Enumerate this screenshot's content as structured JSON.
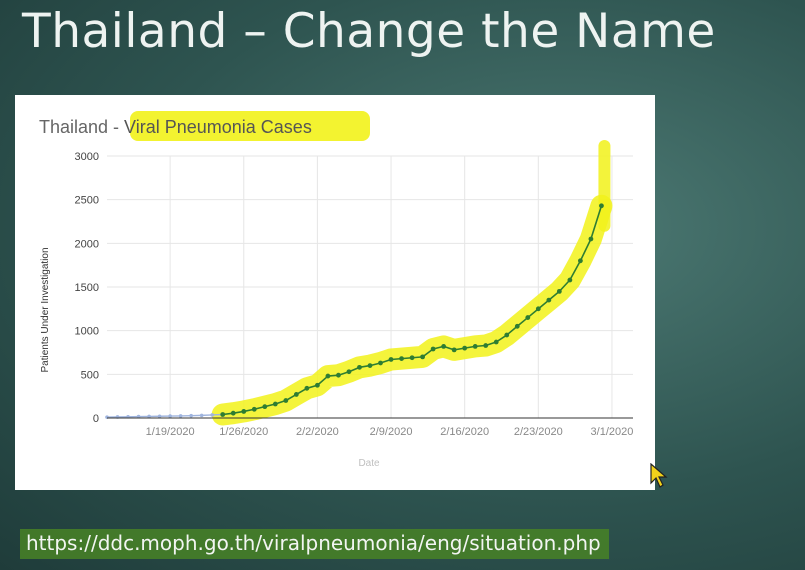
{
  "slide": {
    "title": "Thailand – Change the Name",
    "source_url": "https://ddc.moph.go.th/viralpneumonia/eng/situation.php"
  },
  "highlight_color": "#f2f21a",
  "chart_data": {
    "type": "line",
    "title_prefix": "Thailand - ",
    "title_highlight": "Viral Pneumonia Cases",
    "xlabel": "Date",
    "ylabel": "Patients Under Investigation",
    "ylim": [
      0,
      3000
    ],
    "yticks": [
      0,
      500,
      1000,
      1500,
      2000,
      2500,
      3000
    ],
    "xlim": [
      "2020-01-13",
      "2020-03-03"
    ],
    "xticks": [
      "1/19/2020",
      "1/26/2020",
      "2/2/2020",
      "2/9/2020",
      "2/16/2020",
      "2/23/2020",
      "3/1/2020"
    ],
    "grid": true,
    "legend": "none",
    "series": [
      {
        "color": "#9fb4de",
        "points": [
          [
            "2020-01-13",
            10
          ],
          [
            "2020-01-14",
            12
          ],
          [
            "2020-01-15",
            14
          ],
          [
            "2020-01-16",
            16
          ],
          [
            "2020-01-17",
            18
          ],
          [
            "2020-01-18",
            20
          ],
          [
            "2020-01-19",
            22
          ],
          [
            "2020-01-20",
            24
          ],
          [
            "2020-01-21",
            27
          ],
          [
            "2020-01-22",
            30
          ],
          [
            "2020-01-23",
            35
          ],
          [
            "2020-01-24",
            40
          ]
        ]
      },
      {
        "color": "#2e7d32",
        "points": [
          [
            "2020-01-24",
            40
          ],
          [
            "2020-01-25",
            55
          ],
          [
            "2020-01-26",
            75
          ],
          [
            "2020-01-27",
            100
          ],
          [
            "2020-01-28",
            130
          ],
          [
            "2020-01-29",
            160
          ],
          [
            "2020-01-30",
            200
          ],
          [
            "2020-01-31",
            270
          ],
          [
            "2020-02-01",
            340
          ],
          [
            "2020-02-02",
            375
          ],
          [
            "2020-02-03",
            480
          ],
          [
            "2020-02-04",
            490
          ],
          [
            "2020-02-05",
            530
          ],
          [
            "2020-02-06",
            580
          ],
          [
            "2020-02-07",
            600
          ],
          [
            "2020-02-08",
            630
          ],
          [
            "2020-02-09",
            670
          ],
          [
            "2020-02-10",
            680
          ],
          [
            "2020-02-11",
            690
          ],
          [
            "2020-02-12",
            700
          ],
          [
            "2020-02-13",
            790
          ],
          [
            "2020-02-14",
            820
          ],
          [
            "2020-02-15",
            780
          ],
          [
            "2020-02-16",
            800
          ],
          [
            "2020-02-17",
            820
          ],
          [
            "2020-02-18",
            830
          ],
          [
            "2020-02-19",
            870
          ],
          [
            "2020-02-20",
            950
          ],
          [
            "2020-02-21",
            1050
          ],
          [
            "2020-02-22",
            1150
          ],
          [
            "2020-02-23",
            1250
          ],
          [
            "2020-02-24",
            1350
          ],
          [
            "2020-02-25",
            1450
          ],
          [
            "2020-02-26",
            1580
          ],
          [
            "2020-02-27",
            1800
          ],
          [
            "2020-02-28",
            2050
          ],
          [
            "2020-02-29",
            2430
          ]
        ]
      }
    ]
  }
}
